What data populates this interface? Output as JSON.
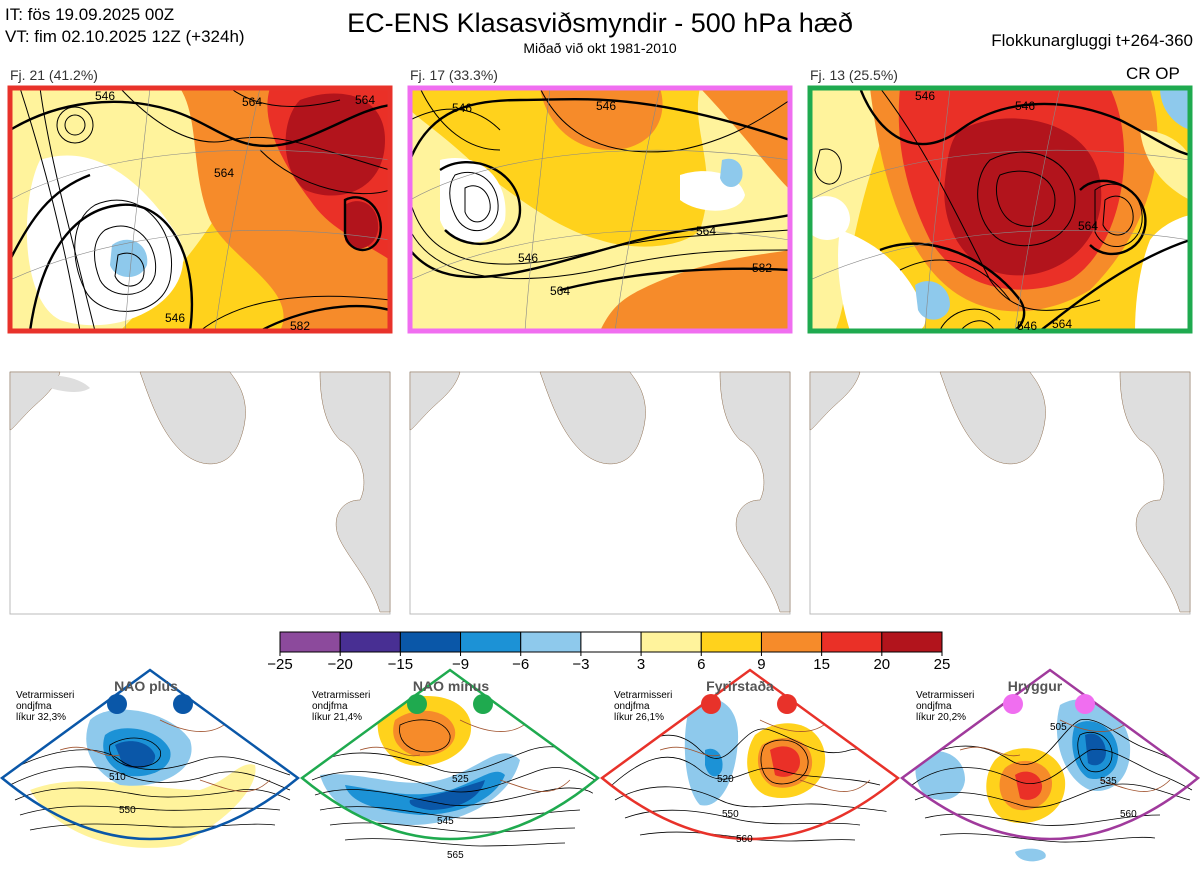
{
  "header": {
    "it": "IT: fös 19.09.2025 00Z",
    "vt": "VT: fim 02.10.2025 12Z  (+324h)",
    "title": "EC-ENS Klasasviðsmyndir - 500 hPa hæð",
    "subtitle": "Miðað við okt 1981-2010",
    "window": "Flokkunargluggi t+264-360",
    "badge": "CR OP"
  },
  "clusters": [
    {
      "label": "Fj. 21 (41.2%)",
      "border": "#e8322a",
      "contours": [
        "546",
        "564",
        "564",
        "582",
        "546",
        "564"
      ]
    },
    {
      "label": "Fj. 17 (33.3%)",
      "border": "#f06ef0",
      "contours": [
        "546",
        "546",
        "564",
        "582",
        "564",
        "546"
      ]
    },
    {
      "label": "Fj. 13 (25.5%)",
      "border": "#1faa4f",
      "contours": [
        "546",
        "546",
        "564",
        "546",
        "564"
      ]
    }
  ],
  "chart_data": {
    "type": "heatmap",
    "title": "EC-ENS Klasasviðsmyndir - 500 hPa hæð",
    "colorbar": {
      "ticks": [
        "−25",
        "−20",
        "−15",
        "−9",
        "−6",
        "−3",
        "3",
        "6",
        "9",
        "15",
        "20",
        "25"
      ],
      "colors": [
        "#8c4a9c",
        "#482f93",
        "#0a57a8",
        "#1c92d6",
        "#8ec9ec",
        "#ffffff",
        "#fff39c",
        "#ffd21c",
        "#f68b2a",
        "#ea3027",
        "#b2141c"
      ]
    }
  },
  "regimes": [
    {
      "name": "NAO plús",
      "period": "Vetrarmisseri",
      "kind": "ondjfma",
      "prob": "líkur 32,3%",
      "color": "#0a57a8",
      "labels": [
        "510",
        "550"
      ]
    },
    {
      "name": "NAO mínus",
      "period": "Vetrarmisseri",
      "kind": "ondjfma",
      "prob": "líkur 21,4%",
      "color": "#1faa4f",
      "labels": [
        "525",
        "545",
        "565"
      ]
    },
    {
      "name": "Fyrirstaða",
      "period": "Vetrarmisseri",
      "kind": "ondjfma",
      "prob": "líkur 26,1%",
      "color": "#e8322a",
      "labels": [
        "520",
        "550",
        "560"
      ]
    },
    {
      "name": "Hryggur",
      "period": "Vetrarmisseri",
      "kind": "ondjfma",
      "prob": "líkur 20,2%",
      "color": "#a03a9c",
      "labels": [
        "505",
        "535",
        "560"
      ]
    }
  ]
}
